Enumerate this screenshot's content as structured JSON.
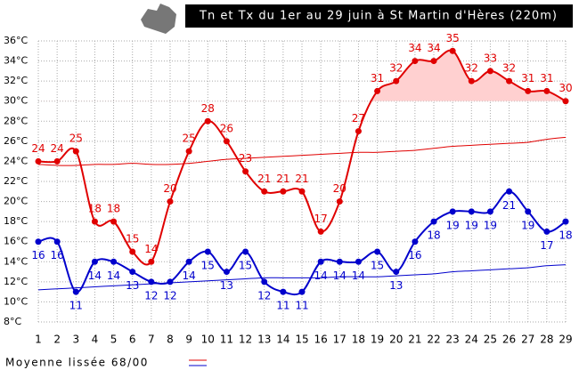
{
  "chart_data": {
    "type": "line",
    "title": "Tn et Tx du 1er au 29 juin à St Martin d'Hères (220m)",
    "legend": "Moyenne lissée 68/00",
    "x": [
      1,
      2,
      3,
      4,
      5,
      6,
      7,
      8,
      9,
      10,
      11,
      12,
      13,
      14,
      15,
      16,
      17,
      18,
      19,
      20,
      21,
      22,
      23,
      24,
      25,
      26,
      27,
      28,
      29
    ],
    "xlim": [
      1,
      29
    ],
    "xticks": [
      1,
      2,
      3,
      4,
      5,
      6,
      7,
      8,
      9,
      10,
      11,
      12,
      13,
      14,
      15,
      16,
      17,
      18,
      19,
      20,
      21,
      22,
      23,
      24,
      25,
      26,
      27,
      28,
      29
    ],
    "ylim": [
      8,
      36
    ],
    "yticks": [
      {
        "value": 8,
        "label": "8°C"
      },
      {
        "value": 10,
        "label": "10°C"
      },
      {
        "value": 12,
        "label": "12°C"
      },
      {
        "value": 14,
        "label": "14°C"
      },
      {
        "value": 16,
        "label": "16°C"
      },
      {
        "value": 18,
        "label": "18°C"
      },
      {
        "value": 20,
        "label": "20°C"
      },
      {
        "value": 22,
        "label": "22°C"
      },
      {
        "value": 24,
        "label": "24°C"
      },
      {
        "value": 26,
        "label": "26°C"
      },
      {
        "value": 28,
        "label": "28°C"
      },
      {
        "value": 30,
        "label": "30°C"
      },
      {
        "value": 32,
        "label": "32°C"
      },
      {
        "value": 34,
        "label": "34°C"
      },
      {
        "value": 36,
        "label": "36°C"
      }
    ],
    "grid": true,
    "shade_above": 30,
    "shade_color": "#ffd0d0",
    "series": [
      {
        "color": "#e00000",
        "values": [
          24,
          24,
          25,
          18,
          18,
          15,
          14,
          20,
          25,
          28,
          26,
          23,
          21,
          21,
          21,
          17,
          20,
          27,
          31,
          32,
          34,
          34,
          35,
          32,
          33,
          32,
          31,
          31,
          30
        ]
      },
      {
        "color": "#0000cc",
        "values": [
          16,
          16,
          11,
          14,
          14,
          13,
          12,
          12,
          14,
          15,
          13,
          15,
          12,
          11,
          11,
          14,
          14,
          14,
          15,
          13,
          16,
          18,
          19,
          19,
          19,
          21,
          19,
          17,
          18
        ]
      }
    ],
    "normals": [
      {
        "color": "#e00000",
        "values": [
          23.7,
          23.6,
          23.6,
          23.7,
          23.7,
          23.8,
          23.7,
          23.7,
          23.8,
          24.0,
          24.2,
          24.3,
          24.4,
          24.5,
          24.6,
          24.7,
          24.8,
          24.9,
          24.9,
          25.0,
          25.1,
          25.3,
          25.5,
          25.6,
          25.7,
          25.8,
          25.9,
          26.2,
          26.4
        ]
      },
      {
        "color": "#0000cc",
        "values": [
          11.2,
          11.3,
          11.4,
          11.5,
          11.6,
          11.7,
          11.8,
          11.9,
          12.0,
          12.1,
          12.2,
          12.3,
          12.4,
          12.4,
          12.4,
          12.4,
          12.5,
          12.5,
          12.5,
          12.6,
          12.7,
          12.8,
          13.0,
          13.1,
          13.2,
          13.3,
          13.4,
          13.6,
          13.7
        ]
      }
    ]
  }
}
